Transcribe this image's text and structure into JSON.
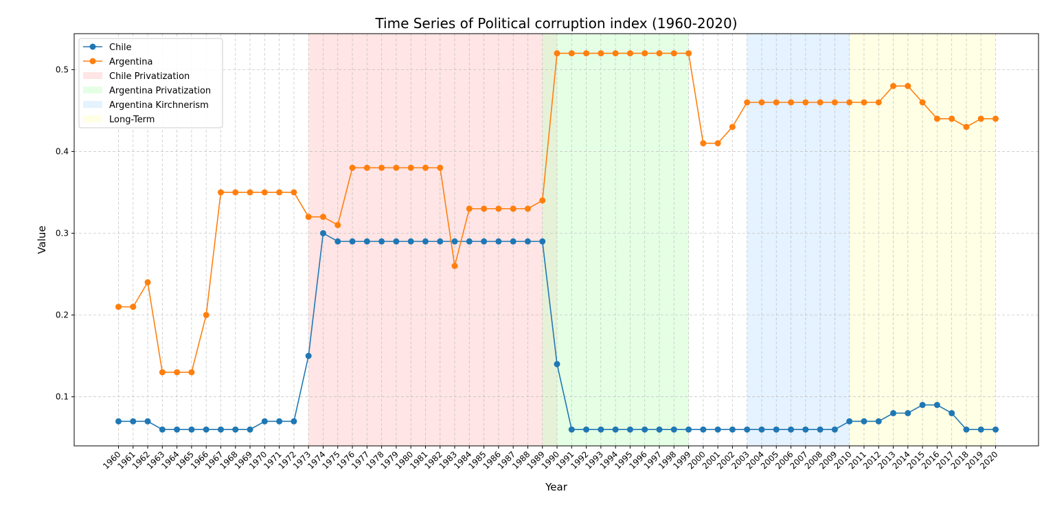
{
  "chart_data": {
    "type": "line",
    "title": "Time Series of Political corruption index (1960-2020)",
    "xlabel": "Year",
    "ylabel": "Value",
    "x": [
      1960,
      1961,
      1962,
      1963,
      1964,
      1965,
      1966,
      1967,
      1968,
      1969,
      1970,
      1971,
      1972,
      1973,
      1974,
      1975,
      1976,
      1977,
      1978,
      1979,
      1980,
      1981,
      1982,
      1983,
      1984,
      1985,
      1986,
      1987,
      1988,
      1989,
      1990,
      1991,
      1992,
      1993,
      1994,
      1995,
      1996,
      1997,
      1998,
      1999,
      2000,
      2001,
      2002,
      2003,
      2004,
      2005,
      2006,
      2007,
      2008,
      2009,
      2010,
      2011,
      2012,
      2013,
      2014,
      2015,
      2016,
      2017,
      2018,
      2019,
      2020
    ],
    "y_ticks": [
      0.1,
      0.2,
      0.3,
      0.4,
      0.5
    ],
    "ylim": [
      0.04,
      0.544
    ],
    "grid": true,
    "legend_position": "top-left",
    "series": [
      {
        "name": "Chile",
        "color": "#1f77b4",
        "values": [
          0.07,
          0.07,
          0.07,
          0.06,
          0.06,
          0.06,
          0.06,
          0.06,
          0.06,
          0.06,
          0.07,
          0.07,
          0.07,
          0.15,
          0.3,
          0.29,
          0.29,
          0.29,
          0.29,
          0.29,
          0.29,
          0.29,
          0.29,
          0.29,
          0.29,
          0.29,
          0.29,
          0.29,
          0.29,
          0.29,
          0.14,
          0.06,
          0.06,
          0.06,
          0.06,
          0.06,
          0.06,
          0.06,
          0.06,
          0.06,
          0.06,
          0.06,
          0.06,
          0.06,
          0.06,
          0.06,
          0.06,
          0.06,
          0.06,
          0.06,
          0.07,
          0.07,
          0.07,
          0.08,
          0.08,
          0.09,
          0.09,
          0.08,
          0.06,
          0.06,
          0.06
        ]
      },
      {
        "name": "Argentina",
        "color": "#ff7f0e",
        "values": [
          0.21,
          0.21,
          0.24,
          0.13,
          0.13,
          0.13,
          0.2,
          0.35,
          0.35,
          0.35,
          0.35,
          0.35,
          0.35,
          0.32,
          0.32,
          0.31,
          0.38,
          0.38,
          0.38,
          0.38,
          0.38,
          0.38,
          0.38,
          0.26,
          0.33,
          0.33,
          0.33,
          0.33,
          0.33,
          0.34,
          0.52,
          0.52,
          0.52,
          0.52,
          0.52,
          0.52,
          0.52,
          0.52,
          0.52,
          0.52,
          0.41,
          0.41,
          0.43,
          0.46,
          0.46,
          0.46,
          0.46,
          0.46,
          0.46,
          0.46,
          0.46,
          0.46,
          0.46,
          0.48,
          0.48,
          0.46,
          0.44,
          0.44,
          0.43,
          0.44,
          0.44
        ]
      }
    ],
    "periods": [
      {
        "name": "Chile Privatization",
        "start": 1973,
        "end": 1990,
        "color": "#ffcccc"
      },
      {
        "name": "Argentina Privatization",
        "start": 1989,
        "end": 1999,
        "color": "#ccffcc"
      },
      {
        "name": "Argentina Kirchnerism",
        "start": 2003,
        "end": 2010,
        "color": "#cce6ff"
      },
      {
        "name": "Long-Term",
        "start": 2010,
        "end": 2020,
        "color": "#ffffcc"
      }
    ]
  }
}
